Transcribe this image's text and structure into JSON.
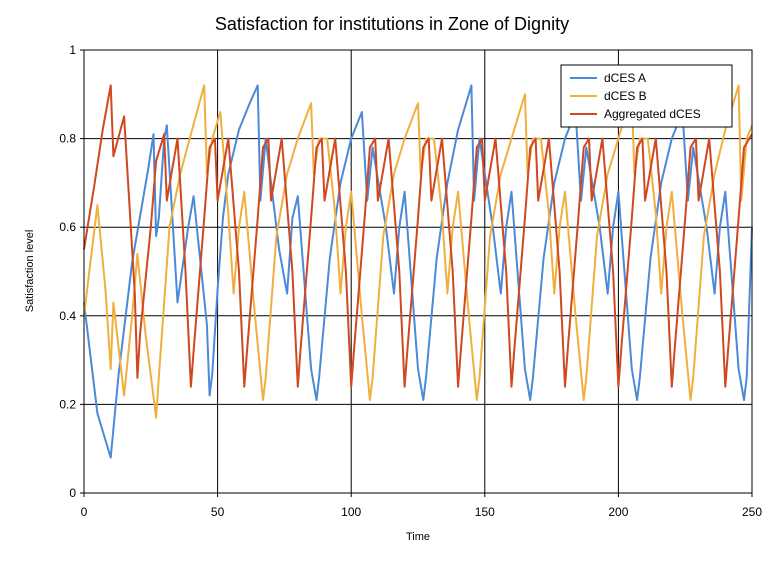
{
  "chart_data": {
    "type": "line",
    "title": "Satisfaction for institutions in Zone of Dignity",
    "xlabel": "Time",
    "ylabel": "Satisfaction level",
    "xlim": [
      0,
      250
    ],
    "ylim": [
      0,
      1
    ],
    "xticks": [
      0,
      50,
      100,
      150,
      200,
      250
    ],
    "yticks": [
      0,
      0.2,
      0.4,
      0.6,
      0.8,
      1
    ],
    "xtick_labels": [
      "0",
      "50",
      "100",
      "150",
      "200",
      "250"
    ],
    "ytick_labels": [
      "0",
      "0.2",
      "0.4",
      "0.6",
      "0.8",
      "1"
    ],
    "grid": true,
    "legend_position": "top-right",
    "series": [
      {
        "name": "dCES A",
        "color": "#4a8ad8",
        "points": [
          [
            0,
            0.43
          ],
          [
            5,
            0.18
          ],
          [
            10,
            0.08
          ],
          [
            13,
            0.27
          ],
          [
            18,
            0.52
          ],
          [
            24,
            0.73
          ],
          [
            26,
            0.81
          ],
          [
            27,
            0.58
          ],
          [
            28,
            0.62
          ],
          [
            30,
            0.8
          ],
          [
            31,
            0.83
          ],
          [
            35,
            0.43
          ],
          [
            39,
            0.6
          ],
          [
            41,
            0.67
          ],
          [
            46,
            0.38
          ],
          [
            47,
            0.22
          ],
          [
            48,
            0.27
          ],
          [
            50,
            0.46
          ],
          [
            52,
            0.62
          ],
          [
            54,
            0.72
          ],
          [
            58,
            0.82
          ],
          [
            62,
            0.88
          ],
          [
            65,
            0.92
          ],
          [
            66,
            0.66
          ],
          [
            68,
            0.8
          ],
          [
            73,
            0.55
          ],
          [
            76,
            0.45
          ],
          [
            78,
            0.62
          ],
          [
            80,
            0.67
          ],
          [
            85,
            0.28
          ],
          [
            87,
            0.21
          ],
          [
            88,
            0.26
          ],
          [
            92,
            0.53
          ],
          [
            96,
            0.7
          ],
          [
            100,
            0.8
          ],
          [
            104,
            0.86
          ],
          [
            106,
            0.66
          ],
          [
            108,
            0.78
          ],
          [
            113,
            0.6
          ],
          [
            116,
            0.45
          ],
          [
            118,
            0.6
          ],
          [
            120,
            0.68
          ],
          [
            125,
            0.28
          ],
          [
            127,
            0.21
          ],
          [
            128,
            0.26
          ],
          [
            132,
            0.53
          ],
          [
            136,
            0.7
          ],
          [
            140,
            0.82
          ],
          [
            144,
            0.9
          ],
          [
            145,
            0.92
          ],
          [
            146,
            0.66
          ],
          [
            148,
            0.8
          ],
          [
            153,
            0.6
          ],
          [
            156,
            0.45
          ],
          [
            158,
            0.6
          ],
          [
            160,
            0.68
          ],
          [
            165,
            0.28
          ],
          [
            167,
            0.21
          ],
          [
            168,
            0.26
          ],
          [
            172,
            0.53
          ],
          [
            176,
            0.7
          ],
          [
            180,
            0.8
          ],
          [
            184,
            0.86
          ],
          [
            186,
            0.66
          ],
          [
            188,
            0.78
          ],
          [
            193,
            0.6
          ],
          [
            196,
            0.45
          ],
          [
            198,
            0.6
          ],
          [
            200,
            0.68
          ],
          [
            205,
            0.28
          ],
          [
            207,
            0.21
          ],
          [
            208,
            0.26
          ],
          [
            212,
            0.53
          ],
          [
            216,
            0.7
          ],
          [
            220,
            0.8
          ],
          [
            224,
            0.86
          ],
          [
            226,
            0.66
          ],
          [
            228,
            0.78
          ],
          [
            233,
            0.6
          ],
          [
            236,
            0.45
          ],
          [
            238,
            0.6
          ],
          [
            240,
            0.68
          ],
          [
            245,
            0.28
          ],
          [
            247,
            0.21
          ],
          [
            248,
            0.26
          ],
          [
            250,
            0.6
          ]
        ]
      },
      {
        "name": "dCES B",
        "color": "#f0b040",
        "points": [
          [
            0,
            0.4
          ],
          [
            2,
            0.5
          ],
          [
            5,
            0.65
          ],
          [
            8,
            0.46
          ],
          [
            10,
            0.28
          ],
          [
            11,
            0.43
          ],
          [
            15,
            0.22
          ],
          [
            18,
            0.4
          ],
          [
            20,
            0.54
          ],
          [
            23,
            0.36
          ],
          [
            27,
            0.17
          ],
          [
            28,
            0.26
          ],
          [
            32,
            0.6
          ],
          [
            36,
            0.72
          ],
          [
            40,
            0.81
          ],
          [
            45,
            0.92
          ],
          [
            46,
            0.72
          ],
          [
            48,
            0.8
          ],
          [
            51,
            0.86
          ],
          [
            54,
            0.63
          ],
          [
            56,
            0.45
          ],
          [
            58,
            0.6
          ],
          [
            60,
            0.68
          ],
          [
            64,
            0.4
          ],
          [
            67,
            0.21
          ],
          [
            68,
            0.26
          ],
          [
            72,
            0.58
          ],
          [
            76,
            0.72
          ],
          [
            80,
            0.8
          ],
          [
            85,
            0.88
          ],
          [
            86,
            0.72
          ],
          [
            88,
            0.8
          ],
          [
            91,
            0.8
          ],
          [
            94,
            0.63
          ],
          [
            96,
            0.45
          ],
          [
            98,
            0.6
          ],
          [
            100,
            0.68
          ],
          [
            104,
            0.4
          ],
          [
            107,
            0.21
          ],
          [
            108,
            0.26
          ],
          [
            112,
            0.58
          ],
          [
            116,
            0.72
          ],
          [
            120,
            0.8
          ],
          [
            125,
            0.88
          ],
          [
            126,
            0.72
          ],
          [
            128,
            0.8
          ],
          [
            131,
            0.8
          ],
          [
            134,
            0.63
          ],
          [
            136,
            0.45
          ],
          [
            138,
            0.6
          ],
          [
            140,
            0.68
          ],
          [
            144,
            0.4
          ],
          [
            147,
            0.21
          ],
          [
            148,
            0.26
          ],
          [
            152,
            0.58
          ],
          [
            156,
            0.72
          ],
          [
            160,
            0.8
          ],
          [
            165,
            0.9
          ],
          [
            166,
            0.72
          ],
          [
            168,
            0.8
          ],
          [
            171,
            0.8
          ],
          [
            174,
            0.63
          ],
          [
            176,
            0.45
          ],
          [
            178,
            0.6
          ],
          [
            180,
            0.68
          ],
          [
            184,
            0.4
          ],
          [
            187,
            0.21
          ],
          [
            188,
            0.26
          ],
          [
            192,
            0.58
          ],
          [
            196,
            0.72
          ],
          [
            200,
            0.8
          ],
          [
            205,
            0.9
          ],
          [
            206,
            0.72
          ],
          [
            208,
            0.8
          ],
          [
            211,
            0.8
          ],
          [
            214,
            0.63
          ],
          [
            216,
            0.45
          ],
          [
            218,
            0.6
          ],
          [
            220,
            0.68
          ],
          [
            224,
            0.4
          ],
          [
            227,
            0.21
          ],
          [
            228,
            0.26
          ],
          [
            232,
            0.58
          ],
          [
            236,
            0.72
          ],
          [
            240,
            0.82
          ],
          [
            245,
            0.92
          ],
          [
            246,
            0.66
          ],
          [
            248,
            0.8
          ],
          [
            250,
            0.83
          ]
        ]
      },
      {
        "name": "Aggregated dCES",
        "color": "#d04820",
        "points": [
          [
            0,
            0.55
          ],
          [
            4,
            0.7
          ],
          [
            7,
            0.82
          ],
          [
            10,
            0.92
          ],
          [
            11,
            0.76
          ],
          [
            15,
            0.85
          ],
          [
            19,
            0.45
          ],
          [
            20,
            0.26
          ],
          [
            21,
            0.36
          ],
          [
            25,
            0.6
          ],
          [
            27,
            0.75
          ],
          [
            30,
            0.81
          ],
          [
            31,
            0.66
          ],
          [
            35,
            0.8
          ],
          [
            38,
            0.5
          ],
          [
            40,
            0.24
          ],
          [
            41,
            0.32
          ],
          [
            45,
            0.62
          ],
          [
            47,
            0.78
          ],
          [
            49,
            0.8
          ],
          [
            50,
            0.66
          ],
          [
            54,
            0.8
          ],
          [
            58,
            0.5
          ],
          [
            60,
            0.24
          ],
          [
            61,
            0.32
          ],
          [
            65,
            0.62
          ],
          [
            67,
            0.78
          ],
          [
            69,
            0.8
          ],
          [
            70,
            0.66
          ],
          [
            74,
            0.8
          ],
          [
            78,
            0.5
          ],
          [
            80,
            0.24
          ],
          [
            81,
            0.32
          ],
          [
            85,
            0.62
          ],
          [
            87,
            0.78
          ],
          [
            89,
            0.8
          ],
          [
            90,
            0.66
          ],
          [
            94,
            0.8
          ],
          [
            98,
            0.5
          ],
          [
            100,
            0.24
          ],
          [
            101,
            0.32
          ],
          [
            105,
            0.62
          ],
          [
            107,
            0.78
          ],
          [
            109,
            0.8
          ],
          [
            110,
            0.66
          ],
          [
            114,
            0.8
          ],
          [
            118,
            0.5
          ],
          [
            120,
            0.24
          ],
          [
            121,
            0.32
          ],
          [
            125,
            0.62
          ],
          [
            127,
            0.78
          ],
          [
            129,
            0.8
          ],
          [
            130,
            0.66
          ],
          [
            134,
            0.8
          ],
          [
            138,
            0.5
          ],
          [
            140,
            0.24
          ],
          [
            141,
            0.32
          ],
          [
            145,
            0.62
          ],
          [
            147,
            0.78
          ],
          [
            149,
            0.8
          ],
          [
            150,
            0.66
          ],
          [
            154,
            0.8
          ],
          [
            158,
            0.5
          ],
          [
            160,
            0.24
          ],
          [
            161,
            0.32
          ],
          [
            165,
            0.62
          ],
          [
            167,
            0.78
          ],
          [
            169,
            0.8
          ],
          [
            170,
            0.66
          ],
          [
            174,
            0.8
          ],
          [
            178,
            0.5
          ],
          [
            180,
            0.24
          ],
          [
            181,
            0.32
          ],
          [
            185,
            0.62
          ],
          [
            187,
            0.78
          ],
          [
            189,
            0.8
          ],
          [
            190,
            0.66
          ],
          [
            194,
            0.8
          ],
          [
            198,
            0.5
          ],
          [
            200,
            0.24
          ],
          [
            201,
            0.32
          ],
          [
            205,
            0.62
          ],
          [
            207,
            0.78
          ],
          [
            209,
            0.8
          ],
          [
            210,
            0.66
          ],
          [
            214,
            0.8
          ],
          [
            218,
            0.5
          ],
          [
            220,
            0.24
          ],
          [
            221,
            0.32
          ],
          [
            225,
            0.62
          ],
          [
            227,
            0.78
          ],
          [
            229,
            0.8
          ],
          [
            230,
            0.66
          ],
          [
            234,
            0.8
          ],
          [
            238,
            0.5
          ],
          [
            240,
            0.24
          ],
          [
            241,
            0.32
          ],
          [
            245,
            0.62
          ],
          [
            247,
            0.78
          ],
          [
            250,
            0.81
          ]
        ]
      }
    ]
  }
}
